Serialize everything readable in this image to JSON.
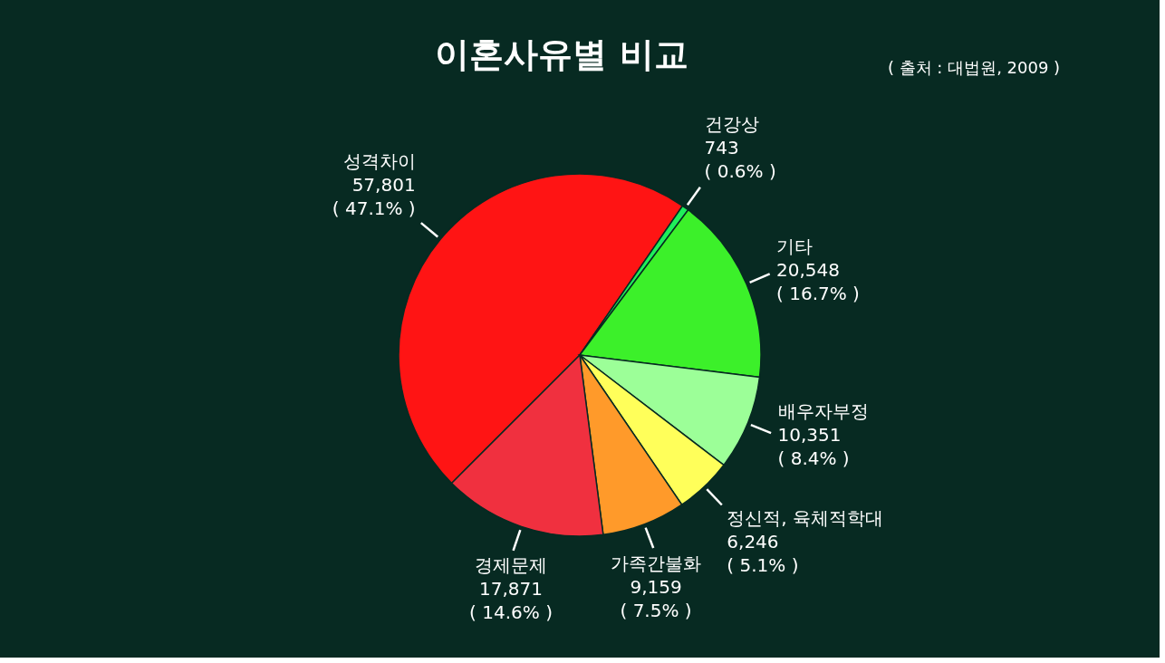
{
  "chart_data": {
    "type": "pie",
    "title": "이혼사유별 비교",
    "categories": [
      "성격차이",
      "건강상",
      "기타",
      "배우자부정",
      "정신적, 육체적학대",
      "가족간불화",
      "경제문제"
    ],
    "values": [
      57801,
      743,
      20548,
      10351,
      6246,
      9159,
      17871
    ],
    "colors": [
      "#ff1414",
      "#1fee5a",
      "#3cf02a",
      "#9cff98",
      "#ffff5a",
      "#ff9a2a",
      "#f0303f"
    ],
    "value_labels": [
      "57,801\n( 47.1% )",
      "743\n( 0.6% )",
      "20,548\n( 16.7% )",
      "10,351\n( 8.4% )",
      "6,246\n( 5.1% )",
      "9,159\n( 7.5% )",
      "17,871\n( 14.6% )"
    ],
    "annotations": [
      "( 출처 : 대법원, 2009 )"
    ]
  }
}
